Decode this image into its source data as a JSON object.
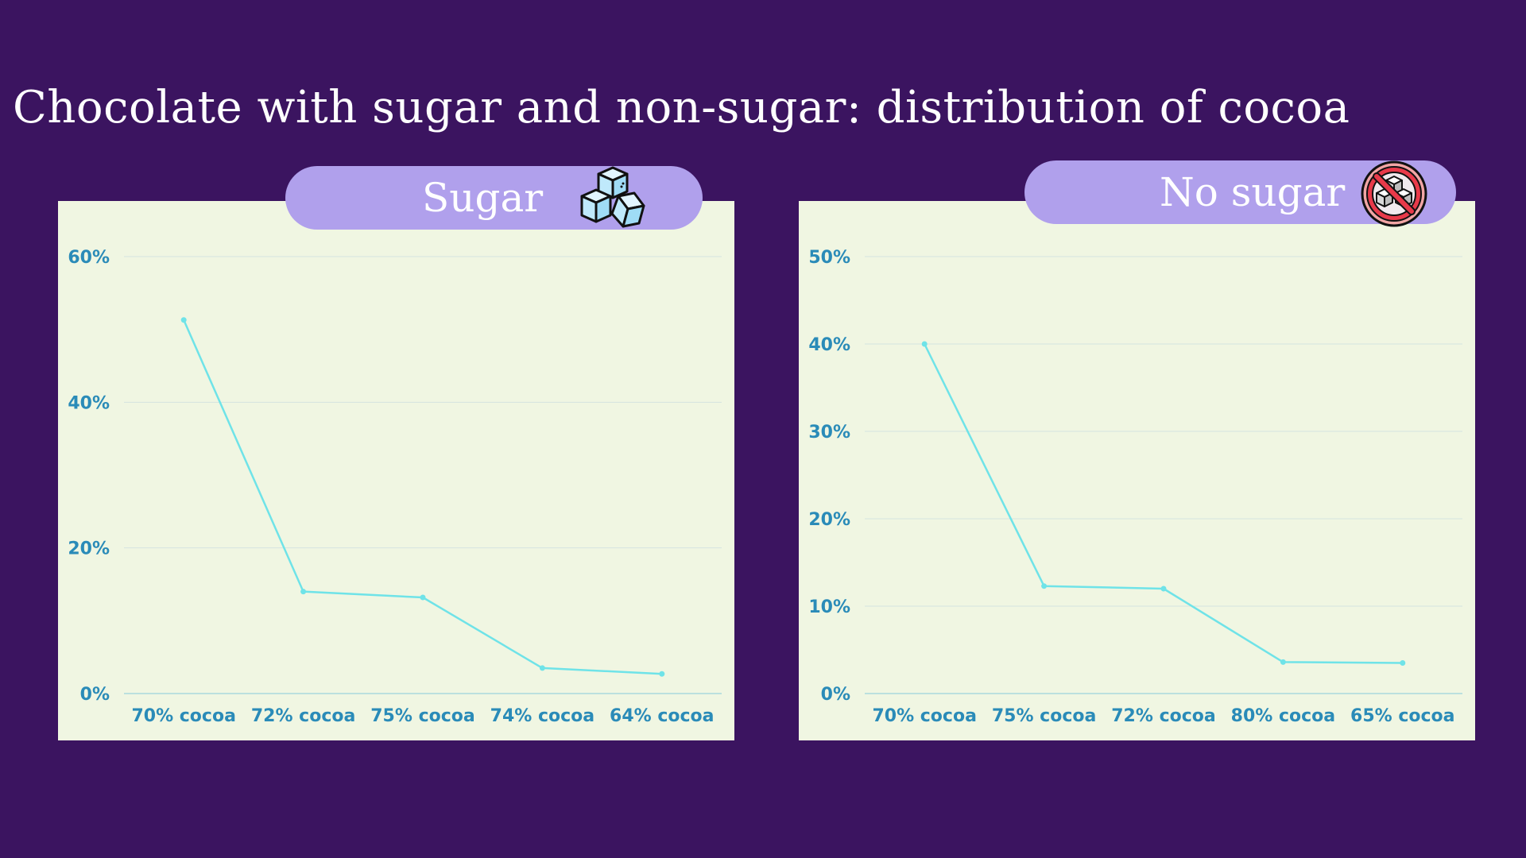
{
  "page": {
    "title": "Chocolate with sugar and non-sugar: distribution of cocoa",
    "background": "#3b1460"
  },
  "colors": {
    "panel": "#f0f6e2",
    "pill": "#b0a0ec",
    "line": "#6fe3e8",
    "tick_text": "#2a8bb8",
    "grid": "#d5e4e0"
  },
  "panels": [
    {
      "label": "Sugar",
      "icon": "sugar-cubes-icon"
    },
    {
      "label": "No sugar",
      "icon": "no-sugar-icon"
    }
  ],
  "chart_data": [
    {
      "type": "line",
      "title": "Sugar",
      "categories": [
        "70% cocoa",
        "72% cocoa",
        "75% cocoa",
        "74% cocoa",
        "64% cocoa"
      ],
      "series": [
        {
          "values": [
            51.3,
            14.0,
            13.2,
            3.5,
            2.7
          ]
        }
      ],
      "yticks": [
        0,
        20,
        40,
        60
      ],
      "ytick_labels": [
        "0%",
        "20%",
        "40%",
        "60%"
      ],
      "ylim": [
        0,
        60
      ],
      "grid": true
    },
    {
      "type": "line",
      "title": "No sugar",
      "categories": [
        "70% cocoa",
        "75% cocoa",
        "72% cocoa",
        "80% cocoa",
        "65% cocoa"
      ],
      "series": [
        {
          "values": [
            40.0,
            12.3,
            12.0,
            3.6,
            3.5
          ]
        }
      ],
      "yticks": [
        0,
        10,
        20,
        30,
        40,
        50
      ],
      "ytick_labels": [
        "0%",
        "10%",
        "20%",
        "30%",
        "40%",
        "50%"
      ],
      "ylim": [
        0,
        50
      ],
      "grid": true
    }
  ]
}
